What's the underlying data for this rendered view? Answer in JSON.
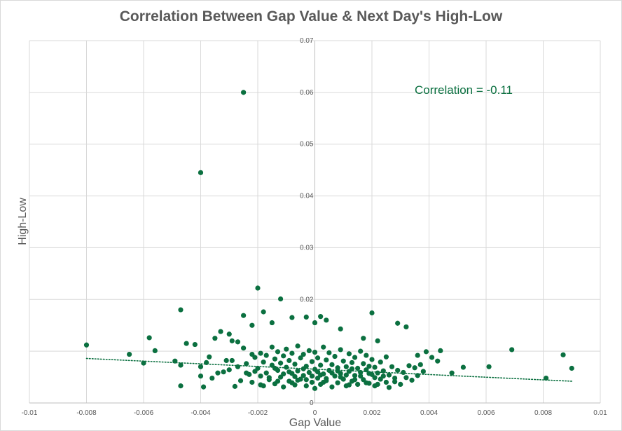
{
  "chart_data": {
    "type": "scatter",
    "title": "Correlation Between Gap Value & Next Day's High-Low",
    "xlabel": "Gap Value",
    "ylabel": "High-Low",
    "xlim": [
      -0.01,
      0.01
    ],
    "ylim": [
      0,
      0.07
    ],
    "x_ticks": [
      "-0.01",
      "-0.008",
      "-0.006",
      "-0.004",
      "-0.002",
      "0",
      "0.002",
      "0.004",
      "0.006",
      "0.008",
      "0.01"
    ],
    "y_ticks": [
      "0",
      "0.01",
      "0.02",
      "0.03",
      "0.04",
      "0.05",
      "0.06",
      "0.07"
    ],
    "y_tick_labels_shown": [
      "0",
      "0.02",
      "0.03",
      "0.04",
      "0.05",
      "0.06",
      "0.07"
    ],
    "grid": true,
    "annotation": "Correlation = -0.11",
    "trendline": {
      "style": "dotted",
      "x": [
        -0.008,
        0.009
      ],
      "y": [
        0.0086,
        0.0042
      ]
    },
    "colors": {
      "points": "#0b7040",
      "trend": "#0b7040",
      "annotation": "#0b7040",
      "grid": "#d9d9d9"
    },
    "points": [
      [
        -0.0025,
        0.06
      ],
      [
        -0.004,
        0.0445
      ],
      [
        -0.002,
        0.0222
      ],
      [
        -0.0012,
        0.0201
      ],
      [
        -0.0047,
        0.018
      ],
      [
        0.002,
        0.0174
      ],
      [
        -0.0018,
        0.0176
      ],
      [
        -0.0025,
        0.0169
      ],
      [
        -0.0008,
        0.0165
      ],
      [
        -0.0003,
        0.0166
      ],
      [
        0.0002,
        0.0167
      ],
      [
        0.0,
        0.0155
      ],
      [
        0.0029,
        0.0154
      ],
      [
        0.0032,
        0.0147
      ],
      [
        -0.0015,
        0.0155
      ],
      [
        -0.0022,
        0.015
      ],
      [
        0.0009,
        0.0143
      ],
      [
        0.0004,
        0.016
      ],
      [
        0.0017,
        0.0125
      ],
      [
        0.0022,
        0.012
      ],
      [
        -0.008,
        0.0112
      ],
      [
        -0.0058,
        0.0126
      ],
      [
        -0.0045,
        0.0115
      ],
      [
        -0.0042,
        0.0113
      ],
      [
        -0.0035,
        0.0125
      ],
      [
        -0.0033,
        0.0138
      ],
      [
        -0.003,
        0.0133
      ],
      [
        -0.0029,
        0.012
      ],
      [
        -0.0027,
        0.0118
      ],
      [
        -0.0065,
        0.0094
      ],
      [
        -0.006,
        0.0077
      ],
      [
        -0.0056,
        0.0101
      ],
      [
        -0.0049,
        0.0081
      ],
      [
        -0.0047,
        0.0073
      ],
      [
        -0.0047,
        0.0033
      ],
      [
        -0.004,
        0.0052
      ],
      [
        -0.004,
        0.007
      ],
      [
        -0.0039,
        0.0031
      ],
      [
        -0.0038,
        0.0078
      ],
      [
        -0.0037,
        0.0089
      ],
      [
        -0.0036,
        0.0048
      ],
      [
        -0.0034,
        0.0058
      ],
      [
        -0.0031,
        0.0082
      ],
      [
        -0.003,
        0.0064
      ],
      [
        -0.0029,
        0.0082
      ],
      [
        -0.0028,
        0.0032
      ],
      [
        -0.0027,
        0.007
      ],
      [
        -0.0026,
        0.0043
      ],
      [
        -0.0025,
        0.0106
      ],
      [
        -0.0024,
        0.0076
      ],
      [
        -0.0023,
        0.0055
      ],
      [
        -0.0022,
        0.0094
      ],
      [
        -0.0022,
        0.004
      ],
      [
        -0.0021,
        0.0088
      ],
      [
        -0.002,
        0.0067
      ],
      [
        -0.0019,
        0.0096
      ],
      [
        -0.0019,
        0.0035
      ],
      [
        -0.0018,
        0.0079
      ],
      [
        -0.0017,
        0.0058
      ],
      [
        -0.0017,
        0.0092
      ],
      [
        -0.0016,
        0.0045
      ],
      [
        -0.0015,
        0.0073
      ],
      [
        -0.0015,
        0.0108
      ],
      [
        -0.0014,
        0.0037
      ],
      [
        -0.0014,
        0.0085
      ],
      [
        -0.0013,
        0.0063
      ],
      [
        -0.0013,
        0.0099
      ],
      [
        -0.0012,
        0.005
      ],
      [
        -0.0012,
        0.0077
      ],
      [
        -0.0011,
        0.0031
      ],
      [
        -0.0011,
        0.0091
      ],
      [
        -0.001,
        0.0069
      ],
      [
        -0.001,
        0.0104
      ],
      [
        -0.0009,
        0.0042
      ],
      [
        -0.0009,
        0.0082
      ],
      [
        -0.0008,
        0.0057
      ],
      [
        -0.0008,
        0.0096
      ],
      [
        -0.0007,
        0.0035
      ],
      [
        -0.0007,
        0.0075
      ],
      [
        -0.0006,
        0.0062
      ],
      [
        -0.0006,
        0.011
      ],
      [
        -0.0005,
        0.0046
      ],
      [
        -0.0005,
        0.0087
      ],
      [
        -0.0004,
        0.0053
      ],
      [
        -0.0004,
        0.0094
      ],
      [
        -0.0003,
        0.0033
      ],
      [
        -0.0003,
        0.0071
      ],
      [
        -0.0002,
        0.0059
      ],
      [
        -0.0002,
        0.0101
      ],
      [
        -0.0001,
        0.004
      ],
      [
        -0.0001,
        0.008
      ],
      [
        0.0,
        0.0028
      ],
      [
        0.0,
        0.0065
      ],
      [
        0.0,
        0.0098
      ],
      [
        0.0001,
        0.0048
      ],
      [
        0.0001,
        0.0087
      ],
      [
        0.0002,
        0.0036
      ],
      [
        0.0002,
        0.0073
      ],
      [
        0.0003,
        0.0056
      ],
      [
        0.0003,
        0.0108
      ],
      [
        0.0004,
        0.0043
      ],
      [
        0.0004,
        0.0083
      ],
      [
        0.0005,
        0.0063
      ],
      [
        0.0005,
        0.0097
      ],
      [
        0.0006,
        0.0031
      ],
      [
        0.0006,
        0.0074
      ],
      [
        0.0007,
        0.0052
      ],
      [
        0.0007,
        0.009
      ],
      [
        0.0008,
        0.0039
      ],
      [
        0.0008,
        0.0068
      ],
      [
        0.0009,
        0.0057
      ],
      [
        0.0009,
        0.0103
      ],
      [
        0.001,
        0.0046
      ],
      [
        0.001,
        0.0081
      ],
      [
        0.0011,
        0.0033
      ],
      [
        0.0011,
        0.007
      ],
      [
        0.0012,
        0.0061
      ],
      [
        0.0012,
        0.0095
      ],
      [
        0.0013,
        0.0042
      ],
      [
        0.0013,
        0.0078
      ],
      [
        0.0014,
        0.0053
      ],
      [
        0.0014,
        0.0088
      ],
      [
        0.0015,
        0.0036
      ],
      [
        0.0015,
        0.0067
      ],
      [
        0.0016,
        0.0059
      ],
      [
        0.0016,
        0.01
      ],
      [
        0.0017,
        0.0045
      ],
      [
        0.0017,
        0.0076
      ],
      [
        0.0018,
        0.0064
      ],
      [
        0.0018,
        0.0092
      ],
      [
        0.0019,
        0.0038
      ],
      [
        0.0019,
        0.0071
      ],
      [
        0.002,
        0.0055
      ],
      [
        0.002,
        0.0084
      ],
      [
        0.0021,
        0.0033
      ],
      [
        0.0021,
        0.0069
      ],
      [
        0.0022,
        0.0058
      ],
      [
        0.0023,
        0.0046
      ],
      [
        0.0023,
        0.0079
      ],
      [
        0.0024,
        0.0062
      ],
      [
        0.0025,
        0.004
      ],
      [
        0.0025,
        0.0089
      ],
      [
        0.0026,
        0.0054
      ],
      [
        0.0027,
        0.007
      ],
      [
        0.0028,
        0.0048
      ],
      [
        0.0029,
        0.0063
      ],
      [
        0.003,
        0.0036
      ],
      [
        0.0031,
        0.0059
      ],
      [
        0.0033,
        0.0072
      ],
      [
        0.0034,
        0.0044
      ],
      [
        0.0035,
        0.0068
      ],
      [
        0.0036,
        0.0053
      ],
      [
        0.0036,
        0.0092
      ],
      [
        0.0037,
        0.0074
      ],
      [
        0.0038,
        0.0061
      ],
      [
        0.0039,
        0.0099
      ],
      [
        0.0041,
        0.0088
      ],
      [
        0.0043,
        0.0081
      ],
      [
        0.0044,
        0.0101
      ],
      [
        0.0048,
        0.0058
      ],
      [
        0.0052,
        0.0069
      ],
      [
        0.0061,
        0.007
      ],
      [
        0.0069,
        0.0103
      ],
      [
        0.0081,
        0.0048
      ],
      [
        0.0087,
        0.0093
      ],
      [
        0.009,
        0.0067
      ],
      [
        -0.0021,
        0.0061
      ],
      [
        -0.0016,
        0.0049
      ],
      [
        -0.0011,
        0.0056
      ],
      [
        -0.0006,
        0.0044
      ],
      [
        -0.0001,
        0.0052
      ],
      [
        0.0004,
        0.0047
      ],
      [
        0.0009,
        0.005
      ],
      [
        0.0014,
        0.0045
      ],
      [
        -0.0009,
        0.006
      ],
      [
        -0.0004,
        0.0066
      ],
      [
        0.0001,
        0.006
      ],
      [
        0.0006,
        0.0058
      ],
      [
        0.0011,
        0.0054
      ],
      [
        0.0016,
        0.0052
      ],
      [
        0.0021,
        0.0049
      ],
      [
        -0.0019,
        0.0052
      ],
      [
        -0.0014,
        0.0067
      ],
      [
        -0.0007,
        0.0051
      ],
      [
        0.0002,
        0.0054
      ],
      [
        0.0008,
        0.0062
      ],
      [
        0.0013,
        0.0066
      ],
      [
        0.0019,
        0.0057
      ],
      [
        0.0024,
        0.0052
      ],
      [
        -0.0024,
        0.0058
      ],
      [
        -0.0032,
        0.006
      ],
      [
        0.0028,
        0.0041
      ],
      [
        0.0032,
        0.0049
      ],
      [
        -0.0003,
        0.0045
      ],
      [
        0.0003,
        0.004
      ],
      [
        -0.0008,
        0.0039
      ],
      [
        0.0012,
        0.0035
      ],
      [
        -0.0013,
        0.0042
      ],
      [
        0.0018,
        0.0039
      ],
      [
        -0.0018,
        0.0033
      ],
      [
        0.0022,
        0.0036
      ],
      [
        0.0026,
        0.003
      ]
    ]
  }
}
